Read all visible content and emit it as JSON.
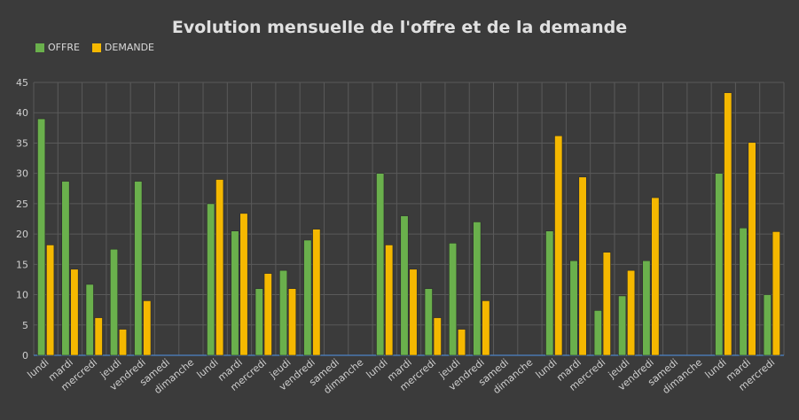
{
  "chart_data": {
    "type": "bar",
    "title": "Evolution mensuelle de l'offre et de la demande",
    "xlabel": "",
    "ylabel": "",
    "ylim": [
      0,
      45
    ],
    "yticks": [
      0,
      5,
      10,
      15,
      20,
      25,
      30,
      35,
      40,
      45
    ],
    "grid": true,
    "legend_position": "top-left",
    "categories": [
      "lundi",
      "mardi",
      "mercredi",
      "jeudi",
      "vendredi",
      "samedi",
      "dimanche",
      "lundi",
      "mardi",
      "mercredi",
      "jeudi",
      "vendredi",
      "samedi",
      "dimanche",
      "lundi",
      "mardi",
      "mercredi",
      "jeudi",
      "vendredi",
      "samedi",
      "dimanche",
      "lundi",
      "mardi",
      "mercredi",
      "jeudi",
      "vendredi",
      "samedi",
      "dimanche",
      "lundi",
      "mardi",
      "mercredi"
    ],
    "series": [
      {
        "name": "OFFRE",
        "color": "#6ab04c",
        "values": [
          39,
          28.7,
          11.7,
          17.5,
          28.7,
          0,
          0,
          25,
          20.5,
          11,
          14,
          19,
          0,
          0,
          30,
          23,
          11,
          18.5,
          22,
          0,
          0,
          20.5,
          15.6,
          7.4,
          9.8,
          15.6,
          0,
          0,
          30,
          21,
          10
        ]
      },
      {
        "name": "DEMANDE",
        "color": "#f5b800",
        "values": [
          18.2,
          14.2,
          6.2,
          4.3,
          9,
          0,
          0,
          29,
          23.4,
          13.5,
          11,
          20.8,
          0,
          0,
          18.2,
          14.2,
          6.2,
          4.3,
          9,
          0,
          0,
          36.2,
          29.4,
          17,
          14,
          26,
          0,
          0,
          43.3,
          35.1,
          20.4
        ]
      }
    ]
  }
}
